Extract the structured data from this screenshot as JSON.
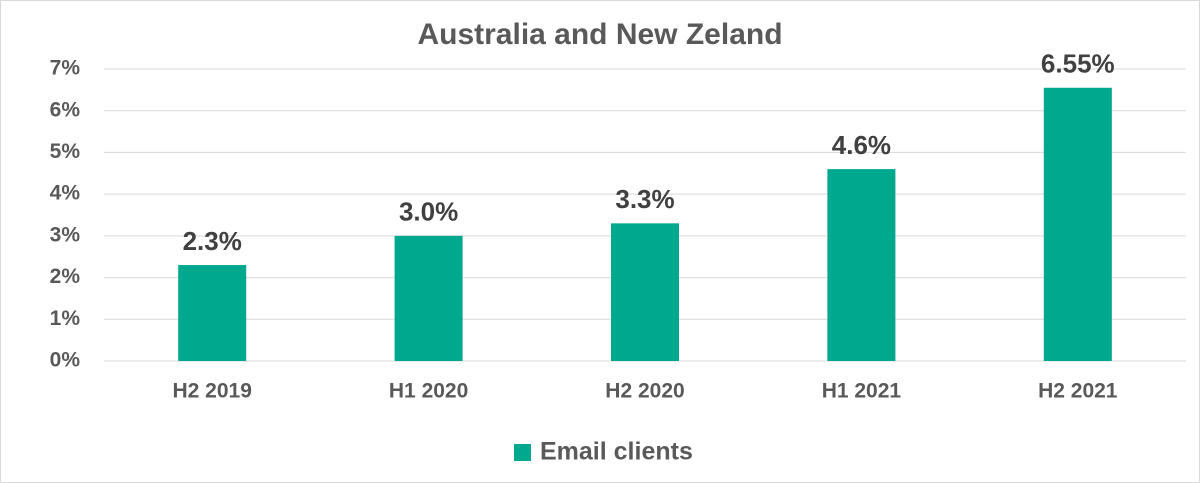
{
  "chart_data": {
    "type": "bar",
    "title": "Australia and New Zeland",
    "categories": [
      "H2 2019",
      "H1 2020",
      "H2 2020",
      "H1 2021",
      "H2 2021"
    ],
    "series": [
      {
        "name": "Email clients",
        "color": "#00a88e",
        "values": [
          2.3,
          3.0,
          3.3,
          4.6,
          6.55
        ],
        "value_labels": [
          "2.3%",
          "3.0%",
          "3.3%",
          "4.6%",
          "6.55%"
        ]
      }
    ],
    "ylim": [
      0,
      7
    ],
    "yticks": [
      {
        "value": 0,
        "label": "0%"
      },
      {
        "value": 1,
        "label": "1%"
      },
      {
        "value": 2,
        "label": "2%"
      },
      {
        "value": 3,
        "label": "3%"
      },
      {
        "value": 4,
        "label": "4%"
      },
      {
        "value": 5,
        "label": "5%"
      },
      {
        "value": 6,
        "label": "6%"
      },
      {
        "value": 7,
        "label": "7%"
      }
    ],
    "grid": true,
    "legend": "bottom"
  }
}
